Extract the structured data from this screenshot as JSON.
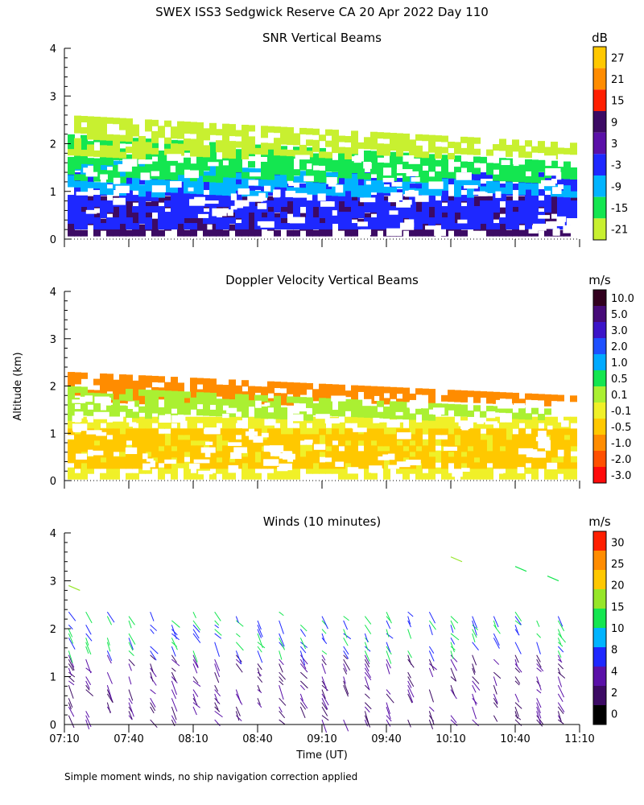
{
  "figure": {
    "title": "SWEX ISS3 Sedgwick Reserve CA  20 Apr 2022 Day 110",
    "footnote": "Simple moment winds, no ship navigation correction applied",
    "ylabel": "Altitude (km)",
    "xlabel": "Time (UT)"
  },
  "chart_data": [
    {
      "type": "heatmap",
      "title": "SNR Vertical Beams",
      "units": "dB",
      "ylim": [
        0,
        4
      ],
      "yticks": [
        "0",
        "1",
        "2",
        "3",
        "4"
      ],
      "xticks": [
        "07:10",
        "07:40",
        "08:10",
        "08:40",
        "09:10",
        "09:40",
        "10:10",
        "10:40",
        "11:10"
      ],
      "colorbar": {
        "labels": [
          "27",
          "21",
          "15",
          "9",
          "3",
          "-3",
          "-9",
          "-15",
          "-21"
        ],
        "colors": [
          "#ffc800",
          "#ff8c00",
          "#ff1e00",
          "#3c0a64",
          "#5a10a8",
          "#1e28ff",
          "#00b4ff",
          "#14e650",
          "#c8f030"
        ]
      },
      "layers": [
        {
          "from_km": 0.15,
          "to_km": 0.9,
          "color": "#3c0a64"
        },
        {
          "from_km": 0.3,
          "to_km": 1.4,
          "color": "#1e28ff"
        },
        {
          "from_km": 1.0,
          "to_km": 1.7,
          "color": "#00b4ff"
        },
        {
          "from_km": 1.3,
          "to_km": 2.2,
          "color": "#14e650"
        },
        {
          "from_km": 1.8,
          "to_km": 2.6,
          "color": "#c8f030"
        }
      ]
    },
    {
      "type": "heatmap",
      "title": "Doppler Velocity Vertical Beams",
      "units": "m/s",
      "ylim": [
        0,
        4
      ],
      "yticks": [
        "0",
        "1",
        "2",
        "3",
        "4"
      ],
      "xticks": [
        "07:10",
        "07:40",
        "08:10",
        "08:40",
        "09:10",
        "09:40",
        "10:10",
        "10:40",
        "11:10"
      ],
      "colorbar": {
        "labels": [
          "10.0",
          "5.0",
          "3.0",
          "2.0",
          "1.0",
          "0.5",
          "0.1",
          "-0.1",
          "-0.5",
          "-1.0",
          "-2.0",
          "-3.0"
        ],
        "colors": [
          "#32001e",
          "#460a78",
          "#3c14c8",
          "#1e50ff",
          "#00aaff",
          "#14e650",
          "#aaf032",
          "#f0f028",
          "#ffc800",
          "#ff8c00",
          "#ff5000",
          "#ff0a0a"
        ]
      },
      "layers": [
        {
          "from_km": 0.15,
          "to_km": 1.35,
          "color": "#f0f028"
        },
        {
          "from_km": 0.3,
          "to_km": 1.1,
          "color": "#ffc800"
        },
        {
          "from_km": 1.7,
          "to_km": 2.3,
          "color": "#ff8c00"
        },
        {
          "from_km": 1.4,
          "to_km": 2.0,
          "color": "#aaf032"
        }
      ]
    },
    {
      "type": "scatter",
      "title": "Winds (10 minutes)",
      "units": "m/s",
      "ylim": [
        0,
        4
      ],
      "yticks": [
        "0",
        "1",
        "2",
        "3",
        "4"
      ],
      "xticks": [
        "07:10",
        "07:40",
        "08:10",
        "08:40",
        "09:10",
        "09:40",
        "10:10",
        "10:40",
        "11:10"
      ],
      "colorbar": {
        "labels": [
          "30",
          "25",
          "20",
          "15",
          "10",
          "8",
          "4",
          "2",
          "0"
        ],
        "colors": [
          "#ff1e00",
          "#ff8c00",
          "#ffc800",
          "#96e628",
          "#14e650",
          "#00b4ff",
          "#1e28ff",
          "#5a10a8",
          "#3c0a64",
          "#000000"
        ]
      },
      "profile_times": [
        "07:12",
        "07:20",
        "07:30",
        "07:40",
        "07:50",
        "08:00",
        "08:10",
        "08:20",
        "08:30",
        "08:40",
        "08:50",
        "09:00",
        "09:10",
        "09:20",
        "09:30",
        "09:40",
        "09:50",
        "10:00",
        "10:10",
        "10:20",
        "10:30",
        "10:40",
        "10:50",
        "11:00"
      ],
      "upper_winds": [
        {
          "time": "07:12",
          "alt_km": 2.9,
          "color": "#96e628"
        },
        {
          "time": "10:10",
          "alt_km": 3.5,
          "color": "#96e628"
        },
        {
          "time": "10:40",
          "alt_km": 3.3,
          "color": "#14e650"
        },
        {
          "time": "10:55",
          "alt_km": 3.1,
          "color": "#14e650"
        }
      ]
    }
  ]
}
